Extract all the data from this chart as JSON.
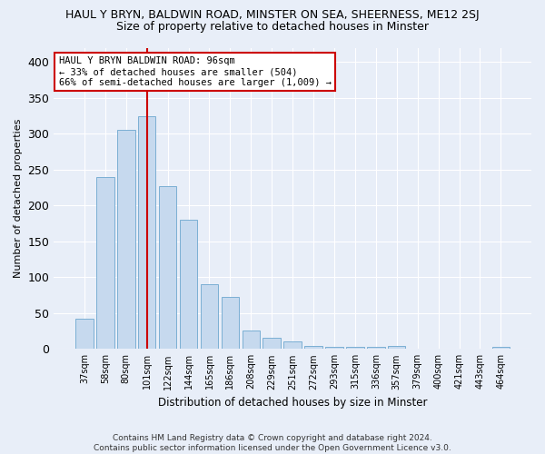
{
  "title": "HAUL Y BRYN, BALDWIN ROAD, MINSTER ON SEA, SHEERNESS, ME12 2SJ",
  "subtitle": "Size of property relative to detached houses in Minster",
  "xlabel": "Distribution of detached houses by size in Minster",
  "ylabel": "Number of detached properties",
  "categories": [
    "37sqm",
    "58sqm",
    "80sqm",
    "101sqm",
    "122sqm",
    "144sqm",
    "165sqm",
    "186sqm",
    "208sqm",
    "229sqm",
    "251sqm",
    "272sqm",
    "293sqm",
    "315sqm",
    "336sqm",
    "357sqm",
    "379sqm",
    "400sqm",
    "421sqm",
    "443sqm",
    "464sqm"
  ],
  "values": [
    42,
    240,
    305,
    325,
    227,
    180,
    90,
    72,
    26,
    15,
    10,
    4,
    3,
    3,
    3,
    4,
    0,
    0,
    0,
    0,
    3
  ],
  "bar_color": "#c6d9ee",
  "bar_edge_color": "#7bafd4",
  "vline_x_index": 3,
  "vline_color": "#cc0000",
  "ylim": [
    0,
    420
  ],
  "yticks": [
    0,
    50,
    100,
    150,
    200,
    250,
    300,
    350,
    400
  ],
  "annotation_text": "HAUL Y BRYN BALDWIN ROAD: 96sqm\n← 33% of detached houses are smaller (504)\n66% of semi-detached houses are larger (1,009) →",
  "annotation_box_color": "#ffffff",
  "annotation_box_edge": "#cc0000",
  "footer": "Contains HM Land Registry data © Crown copyright and database right 2024.\nContains public sector information licensed under the Open Government Licence v3.0.",
  "background_color": "#e8eef8",
  "grid_color": "#ffffff",
  "title_fontsize": 9,
  "subtitle_fontsize": 9,
  "ylabel_fontsize": 8,
  "xlabel_fontsize": 8.5,
  "tick_fontsize": 7,
  "annotation_fontsize": 7.5,
  "footer_fontsize": 6.5
}
